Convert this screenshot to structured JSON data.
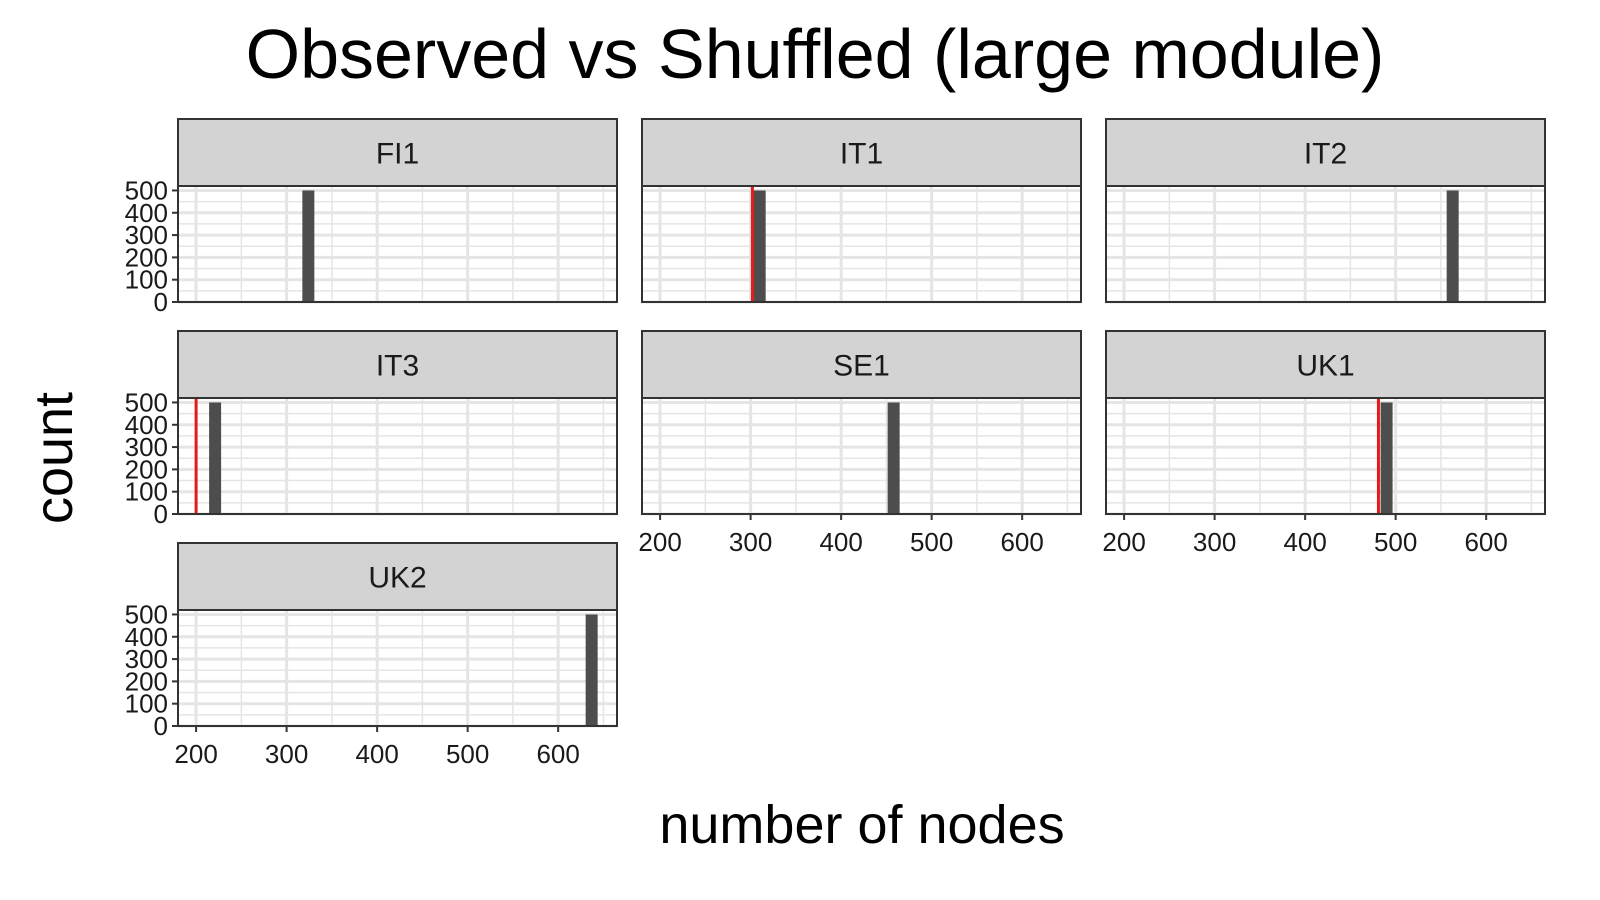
{
  "chart_data": {
    "type": "bar",
    "title": "Observed vs Shuffled (large module)",
    "xlabel": "number of nodes",
    "ylabel": "count",
    "xlim": [
      180,
      665
    ],
    "ylim": [
      0,
      520
    ],
    "x_ticks": [
      200,
      300,
      400,
      500,
      600
    ],
    "y_ticks": [
      0,
      100,
      200,
      300,
      400,
      500
    ],
    "grid": true,
    "colors": {
      "bar": "#4d4d4d",
      "observed_line": "#e41a1c",
      "strip": "#d3d3d3",
      "grid": "#e5e5e5"
    },
    "panels": [
      {
        "name": "FI1",
        "bar": {
          "x": 324,
          "count": 500
        },
        "observed": null
      },
      {
        "name": "IT1",
        "bar": {
          "x": 310,
          "count": 500
        },
        "observed": 302
      },
      {
        "name": "IT2",
        "bar": {
          "x": 563,
          "count": 500
        },
        "observed": null
      },
      {
        "name": "IT3",
        "bar": {
          "x": 221,
          "count": 500
        },
        "observed": 200
      },
      {
        "name": "SE1",
        "bar": {
          "x": 458,
          "count": 500
        },
        "observed": null
      },
      {
        "name": "UK1",
        "bar": {
          "x": 490,
          "count": 500
        },
        "observed": 481
      },
      {
        "name": "UK2",
        "bar": {
          "x": 637,
          "count": 500
        },
        "observed": null
      }
    ]
  }
}
